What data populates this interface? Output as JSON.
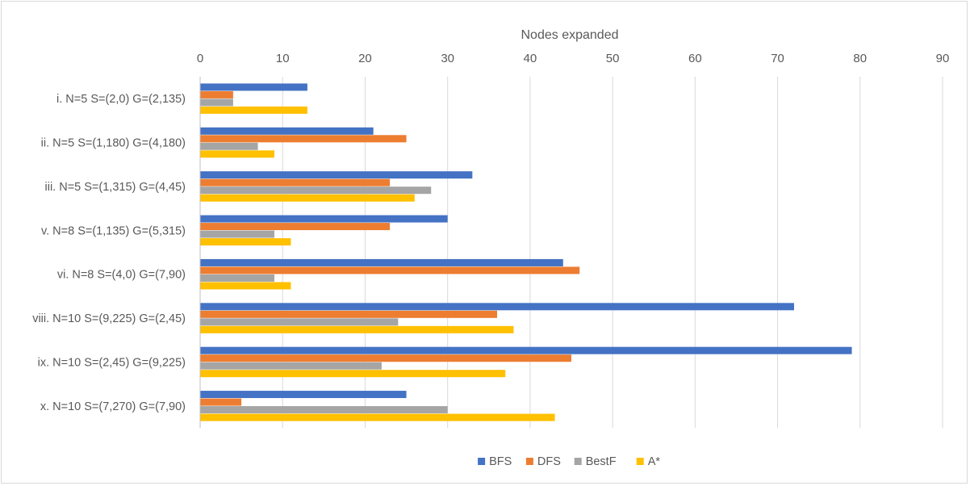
{
  "chart_data": {
    "type": "bar",
    "orientation": "horizontal",
    "xlabel": "Nodes expanded",
    "xlim": [
      0,
      90
    ],
    "xticks": [
      0,
      10,
      20,
      30,
      40,
      50,
      60,
      70,
      80,
      90
    ],
    "grid": true,
    "legend_position": "bottom",
    "categories": [
      "i. N=5 S=(2,0) G=(2,135)",
      "ii. N=5 S=(1,180) G=(4,180)",
      "iii.  N=5 S=(1,315) G=(4,45)",
      "v. N=8 S=(1,135) G=(5,315)",
      "vi. N=8 S=(4,0) G=(7,90)",
      "viii.  N=10 S=(9,225) G=(2,45)",
      "ix. N=10 S=(2,45) G=(9,225)",
      "x. N=10 S=(7,270) G=(7,90)"
    ],
    "series": [
      {
        "name": "BFS",
        "color": "#4472c4",
        "values": [
          13,
          21,
          33,
          30,
          44,
          72,
          79,
          25
        ]
      },
      {
        "name": "DFS",
        "color": "#ed7d31",
        "values": [
          4,
          25,
          23,
          23,
          46,
          36,
          45,
          5
        ]
      },
      {
        "name": "BestF",
        "color": "#a5a5a5",
        "values": [
          4,
          7,
          28,
          9,
          9,
          24,
          22,
          30
        ]
      },
      {
        "name": "A*",
        "color": "#ffc000",
        "values": [
          13,
          9,
          26,
          11,
          11,
          38,
          37,
          43
        ]
      }
    ]
  }
}
